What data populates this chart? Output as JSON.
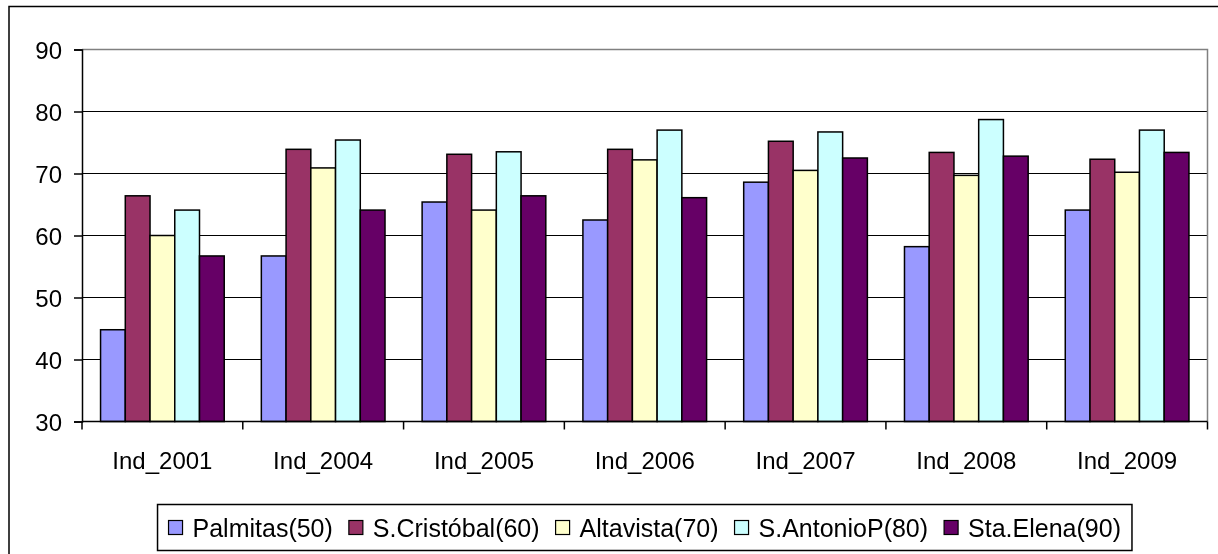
{
  "chart_data": {
    "type": "bar",
    "categories": [
      "Ind_2001",
      "Ind_2004",
      "Ind_2005",
      "Ind_2006",
      "Ind_2007",
      "Ind_2008",
      "Ind_2009"
    ],
    "series": [
      {
        "name": "Palmitas(50)",
        "color": "#9999ff",
        "values": [
          44.8,
          56.7,
          65.4,
          62.5,
          68.6,
          58.2,
          64.1
        ]
      },
      {
        "name": "S.Cristóbal(60)",
        "color": "#993366",
        "values": [
          66.4,
          73.9,
          73.1,
          73.9,
          75.2,
          73.4,
          72.3
        ]
      },
      {
        "name": "Altavista(70)",
        "color": "#ffffcc",
        "values": [
          60,
          70.9,
          64.1,
          72.2,
          70.5,
          69.7,
          70.2
        ]
      },
      {
        "name": "S.AntonioP(80)",
        "color": "#ccffff",
        "values": [
          64.1,
          75.4,
          73.5,
          77.0,
          76.7,
          78.7,
          77.0
        ]
      },
      {
        "name": "Sta.Elena(90)",
        "color": "#660066",
        "values": [
          56.7,
          64.1,
          66.4,
          66.1,
          72.5,
          72.8,
          73.4
        ]
      }
    ],
    "ylim": [
      30,
      90
    ],
    "yticks": [
      30,
      40,
      50,
      60,
      70,
      80,
      90
    ],
    "grid": "y",
    "legend": "bottom"
  }
}
